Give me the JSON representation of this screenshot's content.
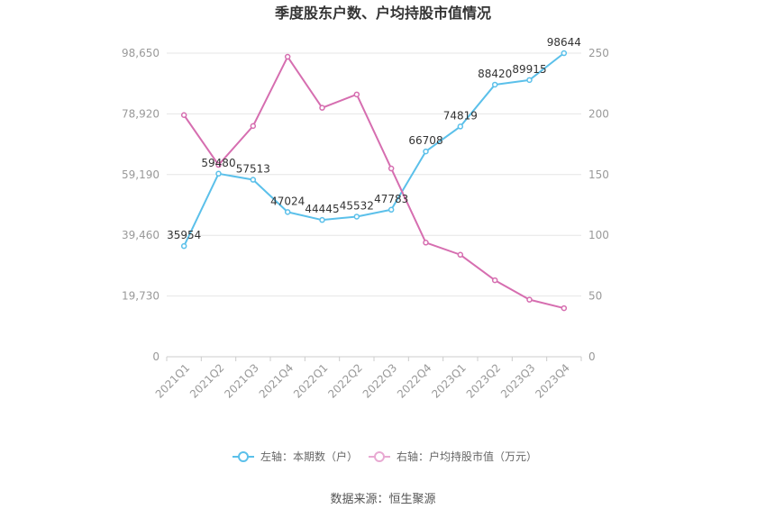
{
  "chart_data": {
    "type": "line",
    "title": "季度股东户数、户均持股市值情况",
    "categories": [
      "2021Q1",
      "2021Q2",
      "2021Q3",
      "2021Q4",
      "2022Q1",
      "2022Q2",
      "2022Q3",
      "2022Q4",
      "2023Q1",
      "2023Q2",
      "2023Q3",
      "2023Q4"
    ],
    "y_left": {
      "ylim": [
        0,
        98650
      ],
      "ticks": [
        "0",
        "19,730",
        "39,460",
        "59,190",
        "78,920",
        "98,650"
      ]
    },
    "y_right": {
      "ylim": [
        0,
        250
      ],
      "ticks": [
        "0",
        "50",
        "100",
        "150",
        "200",
        "250"
      ]
    },
    "series": [
      {
        "name": "左轴：本期数（户）",
        "axis": "left",
        "color": "#5bc0ea",
        "values": [
          35954,
          59480,
          57513,
          47024,
          44445,
          45532,
          47783,
          66708,
          74819,
          88420,
          89915,
          98644
        ],
        "labels": [
          "35954",
          "59480",
          "57513",
          "47024",
          "44445",
          "45532",
          "47783",
          "66708",
          "74819",
          "88420",
          "89915",
          "98644"
        ]
      },
      {
        "name": "右轴：户均持股市值（万元）",
        "axis": "right",
        "color": "#d66eb0",
        "values": [
          199,
          158,
          190,
          247,
          205,
          216,
          155,
          94,
          84,
          63,
          47,
          40
        ]
      }
    ],
    "grid": true,
    "legend_position": "bottom"
  },
  "source": "数据来源：恒生聚源"
}
